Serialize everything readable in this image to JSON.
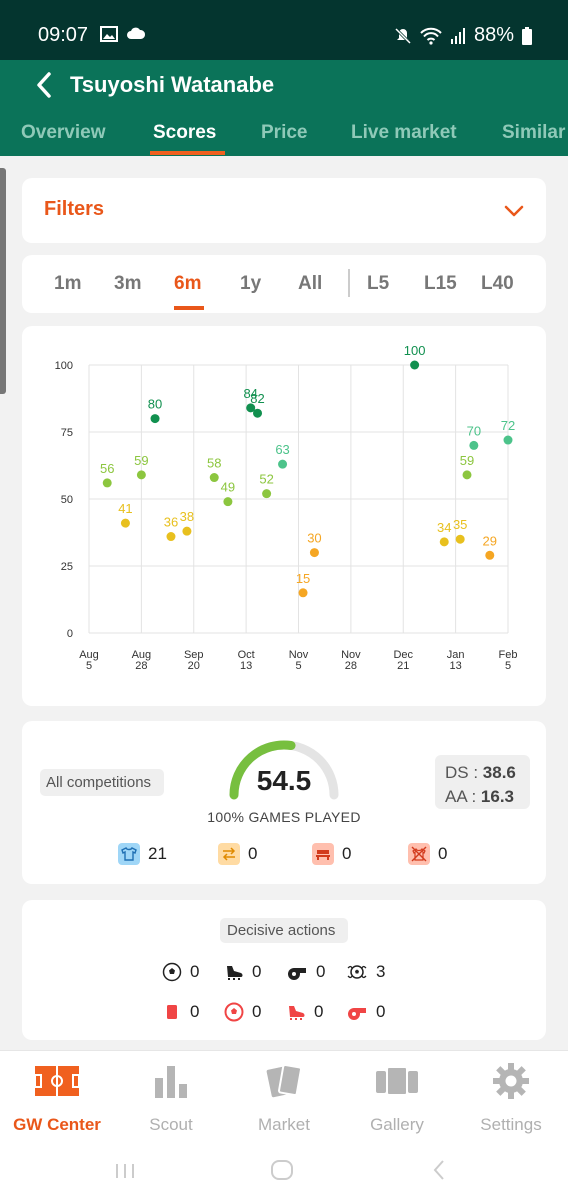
{
  "status_bar": {
    "time": "09:07",
    "battery": "88%"
  },
  "header": {
    "title": "Tsuyoshi Watanabe",
    "tabs": [
      {
        "label": "Overview"
      },
      {
        "label": "Scores"
      },
      {
        "label": "Price"
      },
      {
        "label": "Live market"
      },
      {
        "label": "Similar"
      }
    ],
    "active_tab": "Scores"
  },
  "filters": {
    "label": "Filters"
  },
  "periods": {
    "ranges": [
      "1m",
      "3m",
      "6m",
      "1y",
      "All"
    ],
    "lasts": [
      "L5",
      "L15",
      "L40"
    ],
    "active": "6m"
  },
  "chart_data": {
    "type": "scatter",
    "title": "",
    "xlabel": "",
    "ylabel": "",
    "ylim": [
      0,
      100
    ],
    "y_ticks": [
      0,
      25,
      50,
      75,
      100
    ],
    "x_ticks": [
      {
        "month": "Aug",
        "day": "5"
      },
      {
        "month": "Aug",
        "day": "28"
      },
      {
        "month": "Sep",
        "day": "20"
      },
      {
        "month": "Oct",
        "day": "13"
      },
      {
        "month": "Nov",
        "day": "5"
      },
      {
        "month": "Nov",
        "day": "28"
      },
      {
        "month": "Dec",
        "day": "21"
      },
      {
        "month": "Jan",
        "day": "13"
      },
      {
        "month": "Feb",
        "day": "5"
      }
    ],
    "grid": true,
    "points": [
      {
        "date": "Aug 13",
        "value": 56
      },
      {
        "date": "Aug 21",
        "value": 41
      },
      {
        "date": "Aug 28",
        "value": 59
      },
      {
        "date": "Sep 3",
        "value": 80
      },
      {
        "date": "Sep 10",
        "value": 36
      },
      {
        "date": "Sep 17",
        "value": 38
      },
      {
        "date": "Sep 29",
        "value": 58
      },
      {
        "date": "Oct 5",
        "value": 49
      },
      {
        "date": "Oct 15",
        "value": 84
      },
      {
        "date": "Oct 18",
        "value": 82
      },
      {
        "date": "Oct 22",
        "value": 52
      },
      {
        "date": "Oct 29",
        "value": 63
      },
      {
        "date": "Nov 7",
        "value": 15
      },
      {
        "date": "Nov 12",
        "value": 30
      },
      {
        "date": "Dec 26",
        "value": 100
      },
      {
        "date": "Jan 8",
        "value": 34
      },
      {
        "date": "Jan 15",
        "value": 35
      },
      {
        "date": "Jan 18",
        "value": 59
      },
      {
        "date": "Jan 21",
        "value": 70
      },
      {
        "date": "Jan 28",
        "value": 29
      },
      {
        "date": "Feb 5",
        "value": 72
      }
    ],
    "colors": {
      "low": "#f5a623",
      "mid_low": "#e8c01e",
      "mid": "#8cc63f",
      "high": "#4cc38a",
      "top": "#11904f"
    }
  },
  "summary": {
    "competition": "All competitions",
    "score": "54.5",
    "gauge_fraction": 0.545,
    "games_played": "100% GAMES PLAYED",
    "ds_label": "DS :",
    "ds_value": "38.6",
    "aa_label": "AA :",
    "aa_value": "16.3",
    "counts": [
      {
        "icon": "shirt-icon",
        "value": "21",
        "color": "#7ec8f5"
      },
      {
        "icon": "substitution-icon",
        "value": "0",
        "color": "#ffd79a"
      },
      {
        "icon": "bench-icon",
        "value": "0",
        "color": "#ffb4a0"
      },
      {
        "icon": "not-in-squad-icon",
        "value": "0",
        "color": "#ffb4a0"
      }
    ]
  },
  "decisive": {
    "label": "Decisive actions",
    "row1": [
      {
        "icon": "goal-icon",
        "value": "0"
      },
      {
        "icon": "assist-boot-icon",
        "value": "0"
      },
      {
        "icon": "penalty-won-whistle-icon",
        "value": "0"
      },
      {
        "icon": "clean-sheet-icon",
        "value": "3"
      }
    ],
    "row2": [
      {
        "icon": "red-card-icon",
        "value": "0"
      },
      {
        "icon": "own-goal-icon",
        "value": "0"
      },
      {
        "icon": "error-boot-icon",
        "value": "0"
      },
      {
        "icon": "penalty-conceded-whistle-icon",
        "value": "0"
      }
    ]
  },
  "bottom_nav": [
    {
      "label": "GW Center"
    },
    {
      "label": "Scout"
    },
    {
      "label": "Market"
    },
    {
      "label": "Gallery"
    },
    {
      "label": "Settings"
    }
  ]
}
